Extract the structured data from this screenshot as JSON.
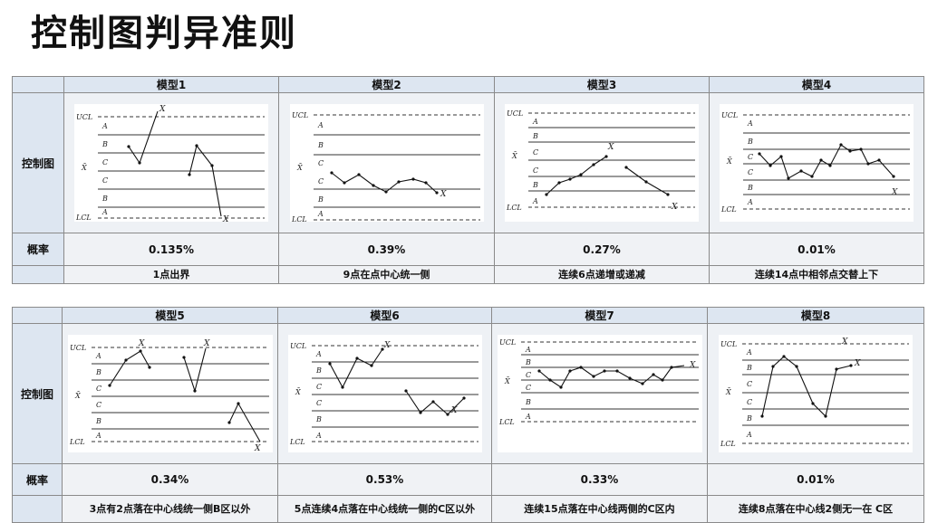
{
  "title": "控制图判异准则",
  "labels": {
    "chart": "控制图",
    "probability": "概率"
  },
  "zone_labels": {
    "ucl": "UCL",
    "lcl": "LCL",
    "center": "X̄",
    "a": "A",
    "b": "B",
    "c": "C",
    "point": "X"
  },
  "models": [
    {
      "name": "模型1",
      "probability": "0.135%",
      "description": "1点出界"
    },
    {
      "name": "模型2",
      "probability": "0.39%",
      "description": "9点在点中心统一侧"
    },
    {
      "name": "模型3",
      "probability": "0.27%",
      "description": "连续6点递增或递减"
    },
    {
      "name": "模型4",
      "probability": "0.01%",
      "description": "连续14点中相邻点交替上下"
    },
    {
      "name": "模型5",
      "probability": "0.34%",
      "description": "3点有2点落在中心线统一侧B区以外"
    },
    {
      "name": "模型6",
      "probability": "0.53%",
      "description": "5点连续4点落在中心线统一侧的C区以外"
    },
    {
      "name": "模型7",
      "probability": "0.33%",
      "description": "连续15点落在中心线两侧的C区内"
    },
    {
      "name": "模型8",
      "probability": "0.01%",
      "description": "连续8点落在中心线2侧无一在 C区"
    }
  ]
}
